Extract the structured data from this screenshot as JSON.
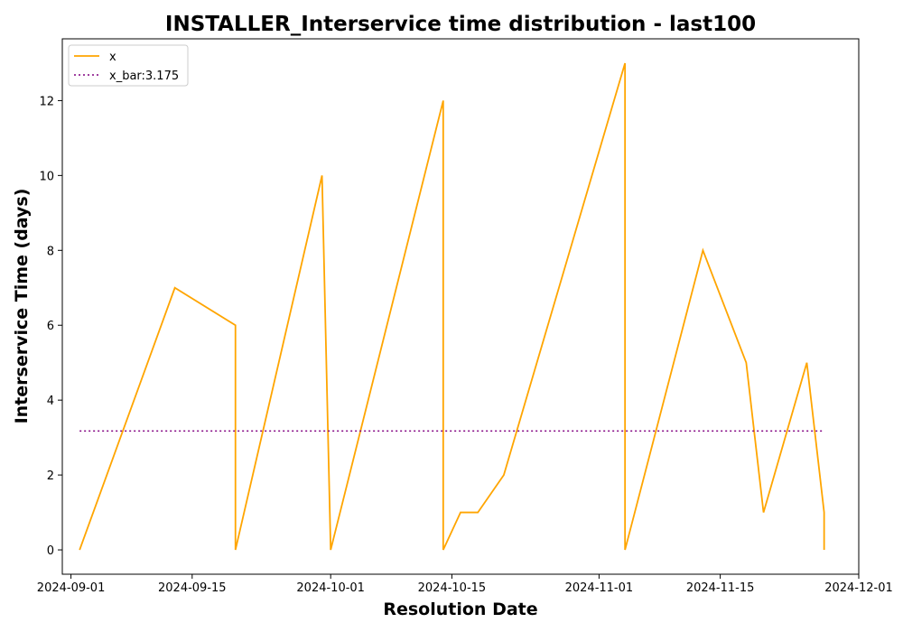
{
  "chart_data": {
    "type": "line",
    "title": "INSTALLER_Interservice time distribution - last100",
    "xlabel": "Resolution Date",
    "ylabel": "Interservice Time (days)",
    "x_axis_type": "date",
    "xlim": [
      "2024-08-31",
      "2024-12-01"
    ],
    "ylim": [
      -0.65,
      13.65
    ],
    "xticks": [
      "2024-09-01",
      "2024-09-15",
      "2024-10-01",
      "2024-10-15",
      "2024-11-01",
      "2024-11-15",
      "2024-12-01"
    ],
    "yticks": [
      0,
      2,
      4,
      6,
      8,
      10,
      12
    ],
    "grid": false,
    "legend": "top-left",
    "series": [
      {
        "name": "x",
        "color": "#ffa500",
        "style": "solid",
        "points": [
          {
            "x": "2024-09-02",
            "y": 0
          },
          {
            "x": "2024-09-13",
            "y": 7
          },
          {
            "x": "2024-09-20",
            "y": 6
          },
          {
            "x": "2024-09-20",
            "y": 0
          },
          {
            "x": "2024-09-30",
            "y": 10
          },
          {
            "x": "2024-10-01",
            "y": 0
          },
          {
            "x": "2024-10-01",
            "y": 0
          },
          {
            "x": "2024-10-14",
            "y": 12
          },
          {
            "x": "2024-10-14",
            "y": 0
          },
          {
            "x": "2024-10-16",
            "y": 1
          },
          {
            "x": "2024-10-18",
            "y": 1
          },
          {
            "x": "2024-10-21",
            "y": 2
          },
          {
            "x": "2024-11-04",
            "y": 13
          },
          {
            "x": "2024-11-04",
            "y": 0
          },
          {
            "x": "2024-11-04",
            "y": 0
          },
          {
            "x": "2024-11-13",
            "y": 8
          },
          {
            "x": "2024-11-18",
            "y": 5
          },
          {
            "x": "2024-11-20",
            "y": 1
          },
          {
            "x": "2024-11-25",
            "y": 5
          },
          {
            "x": "2024-11-27",
            "y": 1
          },
          {
            "x": "2024-11-27",
            "y": 0
          }
        ]
      },
      {
        "name": "x_bar:3.175",
        "color": "#800080",
        "style": "dotted",
        "points": [
          {
            "x": "2024-09-02",
            "y": 3.175
          },
          {
            "x": "2024-11-27",
            "y": 3.175
          }
        ]
      }
    ]
  }
}
